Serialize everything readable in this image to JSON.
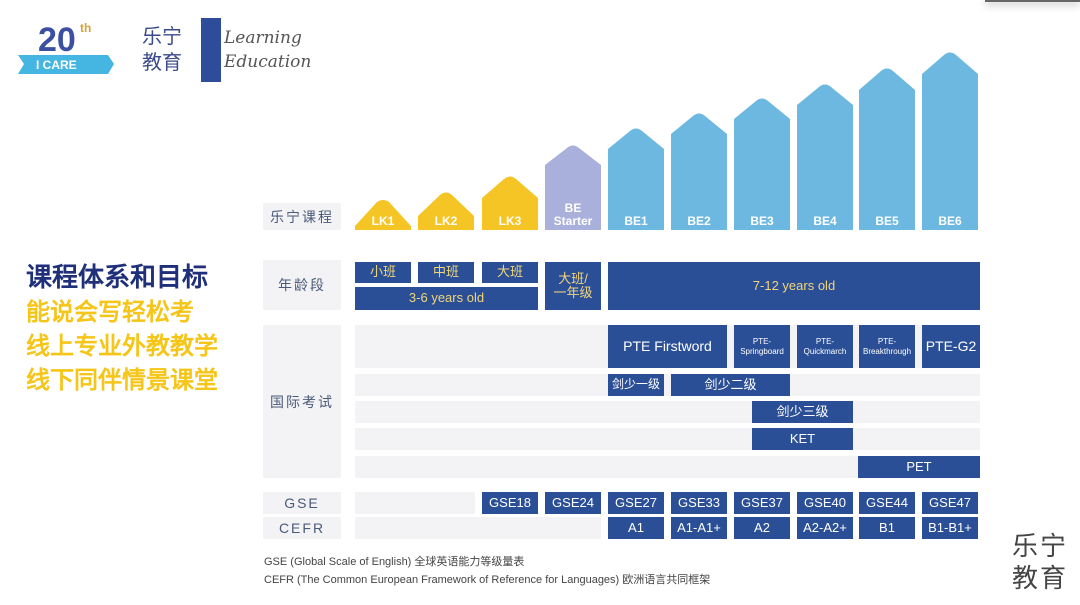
{
  "logo": {
    "badge_text": "20th I CARE",
    "brand_cn_1": "乐宁",
    "brand_cn_2": "教育",
    "brand_en_1": "Learning",
    "brand_en_2": "Education"
  },
  "left": {
    "title": "课程体系和目标",
    "lines": [
      "能说会写轻松考",
      "线上专业外教教学",
      "线下同伴情景课堂"
    ]
  },
  "colors": {
    "navy": "#2b4f96",
    "yellow": "#f5c526",
    "lavender": "#aab0dc",
    "sky": "#6cb8e0",
    "slogan": "#f5c518"
  },
  "rows": {
    "course": "乐宁课程",
    "age": "年龄段",
    "exam": "国际考试",
    "gse": "GSE",
    "cefr": "CEFR"
  },
  "courses": [
    "LK1",
    "LK2",
    "LK3",
    "BE Starter",
    "BE1",
    "BE2",
    "BE3",
    "BE4",
    "BE5",
    "BE6"
  ],
  "age": {
    "small": "小班",
    "middle": "中班",
    "big": "大班",
    "kinder_range": "3-6 years old",
    "transition": "大班/一年级",
    "primary_range": "7-12 years old"
  },
  "exams": {
    "pte": [
      "PTE Firstword",
      "PTE-Springboard",
      "PTE-Quickmarch",
      "PTE-Breakthrough",
      "PTE-G2"
    ],
    "yle1": "剑少一级",
    "yle2": "剑少二级",
    "yle3": "剑少三级",
    "ket": "KET",
    "pet": "PET"
  },
  "gse": [
    "GSE18",
    "GSE24",
    "GSE27",
    "GSE33",
    "GSE37",
    "GSE40",
    "GSE44",
    "GSE47"
  ],
  "cefr": [
    "A1",
    "A1-A1+",
    "A2",
    "A2-A2+",
    "B1",
    "B1-B1+"
  ],
  "notes": [
    "GSE (Global Scale of English) 全球英语能力等级量表",
    "CEFR (The Common European Framework of Reference for Languages) 欧洲语言共同框架"
  ],
  "watermark": [
    "乐宁",
    "教育"
  ]
}
